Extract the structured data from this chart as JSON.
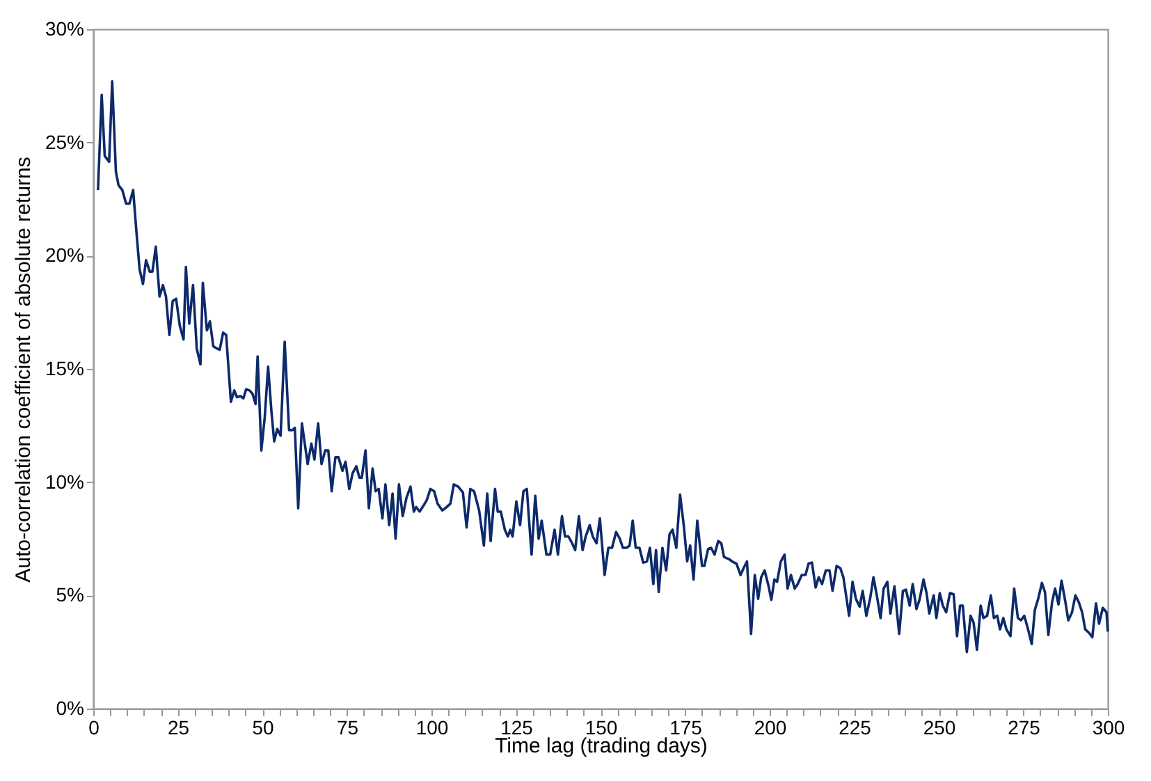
{
  "chart_data": {
    "type": "line",
    "xlabel": "Time lag (trading days)",
    "ylabel": "Auto-correlation coefficient of absolute returns",
    "xlim": [
      0,
      300
    ],
    "xticks": [
      0,
      {
        "value": 5,
        "label": null
      },
      {
        "value": 10,
        "label": null
      },
      {
        "value": 15,
        "label": null
      },
      {
        "value": 20,
        "label": null
      },
      25,
      {
        "value": 30,
        "label": null
      },
      {
        "value": 35,
        "label": null
      },
      {
        "value": 40,
        "label": null
      },
      {
        "value": 45,
        "label": null
      },
      50,
      {
        "value": 55,
        "label": null
      },
      {
        "value": 60,
        "label": null
      },
      {
        "value": 65,
        "label": null
      },
      {
        "value": 70,
        "label": null
      },
      75,
      {
        "value": 80,
        "label": null
      },
      {
        "value": 85,
        "label": null
      },
      {
        "value": 90,
        "label": null
      },
      {
        "value": 95,
        "label": null
      },
      100,
      {
        "value": 105,
        "label": null
      },
      {
        "value": 110,
        "label": null
      },
      {
        "value": 115,
        "label": null
      },
      {
        "value": 120,
        "label": null
      },
      125,
      {
        "value": 130,
        "label": null
      },
      {
        "value": 135,
        "label": null
      },
      {
        "value": 140,
        "label": null
      },
      {
        "value": 145,
        "label": null
      },
      150,
      {
        "value": 155,
        "label": null
      },
      {
        "value": 160,
        "label": null
      },
      {
        "value": 165,
        "label": null
      },
      {
        "value": 170,
        "label": null
      },
      175,
      {
        "value": 180,
        "label": null
      },
      {
        "value": 185,
        "label": null
      },
      {
        "value": 190,
        "label": null
      },
      {
        "value": 195,
        "label": null
      },
      200,
      {
        "value": 205,
        "label": null
      },
      {
        "value": 210,
        "label": null
      },
      {
        "value": 215,
        "label": null
      },
      {
        "value": 220,
        "label": null
      },
      225,
      {
        "value": 230,
        "label": null
      },
      {
        "value": 235,
        "label": null
      },
      {
        "value": 240,
        "label": null
      },
      {
        "value": 245,
        "label": null
      },
      250,
      {
        "value": 255,
        "label": null
      },
      {
        "value": 260,
        "label": null
      },
      {
        "value": 265,
        "label": null
      },
      {
        "value": 270,
        "label": null
      },
      275,
      {
        "value": 280,
        "label": null
      },
      {
        "value": 285,
        "label": null
      },
      {
        "value": 290,
        "label": null
      },
      {
        "value": 295,
        "label": null
      },
      300
    ],
    "ylim": [
      0,
      30
    ],
    "yticks": [
      {
        "value": 0,
        "label": "0%"
      },
      {
        "value": 5,
        "label": "5%"
      },
      {
        "value": 10,
        "label": "10%"
      },
      {
        "value": 15,
        "label": "15%"
      },
      {
        "value": 20,
        "label": "20%"
      },
      {
        "value": 25,
        "label": "25%"
      },
      {
        "value": 30,
        "label": "30%"
      }
    ],
    "grid": false,
    "line_style": "solid",
    "marker": "none",
    "series": [
      {
        "color": "#0d2a6b",
        "x": [
          1.4,
          2.5,
          3.4,
          4.7,
          5.6,
          6.7,
          7.5,
          8.6,
          9.7,
          10.7,
          11.8,
          12.8,
          13.7,
          14.7,
          15.6,
          16.7,
          17.5,
          18.5,
          19.6,
          20.6,
          21.5,
          22.5,
          23.5,
          24.5,
          25.6,
          26.7,
          27.4,
          28.4,
          29.5,
          30.6,
          31.7,
          32.4,
          33.6,
          34.5,
          35.5,
          36.6,
          37.4,
          38.4,
          39.3,
          40.7,
          41.7,
          42.5,
          43.5,
          44.4,
          45.2,
          46.2,
          47.1,
          48.0,
          48.6,
          49.7,
          50.7,
          51.7,
          52.7,
          53.5,
          54.4,
          55.4,
          56.6,
          57.9,
          58.9,
          59.6,
          60.6,
          61.7,
          63.4,
          64.5,
          65.4,
          66.5,
          67.5,
          68.6,
          69.5,
          70.5,
          71.6,
          72.5,
          73.7,
          74.6,
          75.7,
          76.7,
          77.8,
          78.7,
          79.4,
          80.5,
          81.5,
          82.6,
          83.5,
          84.4,
          85.5,
          86.4,
          87.5,
          88.5,
          89.4,
          90.4,
          91.5,
          92.6,
          93.8,
          94.8,
          95.5,
          96.5,
          97.6,
          98.6,
          99.7,
          100.8,
          101.8,
          103.2,
          104.5,
          105.6,
          106.6,
          107.9,
          109.3,
          110.4,
          111.5,
          112.6,
          114.1,
          115.5,
          116.5,
          117.5,
          118.8,
          119.6,
          120.5,
          121.7,
          122.6,
          123.3,
          124,
          125.1,
          126.2,
          127.2,
          128.2,
          129.6,
          130.7,
          131.7,
          132.6,
          134,
          135.1,
          136.4,
          137.4,
          138.6,
          139.5,
          140.5,
          141.6,
          142.5,
          143.6,
          144.7,
          145.6,
          146.8,
          147.7,
          148.8,
          149.8,
          151.2,
          152.3,
          153.4,
          154.6,
          155.7,
          156.6,
          157.7,
          158.6,
          159.5,
          160.4,
          161.5,
          162.6,
          163.7,
          164.6,
          165.6,
          166.4,
          167.2,
          168.3,
          169.4,
          170.4,
          171.3,
          172.4,
          173.5,
          174.6,
          175.6,
          176.5,
          177.5,
          178.6,
          180,
          180.7,
          181.8,
          182.7,
          183.7,
          184.8,
          185.7,
          186.5,
          188,
          188.9,
          190.2,
          191.4,
          192.3,
          193.3,
          194.5,
          195.6,
          196.6,
          197.5,
          198.5,
          199.7,
          200.5,
          201.4,
          202.2,
          203.3,
          204.4,
          205.3,
          206.3,
          207.4,
          208.3,
          209.5,
          210.6,
          211.5,
          212.5,
          213.6,
          214.5,
          215.5,
          216.6,
          217.7,
          218.6,
          219.8,
          220.9,
          221.8,
          223.5,
          224.5,
          225.5,
          226.6,
          227.5,
          228.6,
          229.7,
          230.7,
          231.8,
          232.8,
          233.7,
          234.8,
          235.7,
          236.9,
          238.3,
          239.4,
          240.3,
          241.4,
          242.3,
          243.4,
          244.3,
          245.5,
          246.4,
          247.2,
          248.5,
          249.3,
          250.3,
          251.2,
          252.2,
          253.3,
          254.4,
          255.4,
          256.3,
          257.1,
          258.3,
          259.4,
          260.3,
          261.3,
          262.4,
          263.2,
          264.3,
          265.4,
          266.3,
          267.3,
          268.1,
          269.1,
          270,
          271.2,
          272.3,
          273.4,
          274.3,
          275.3,
          276.4,
          277.5,
          278.4,
          279.4,
          280.5,
          281.4,
          282.4,
          283.5,
          284.4,
          285.4,
          286.3,
          287.4,
          288.3,
          289.4,
          290.4,
          291.4,
          292.4,
          293.3,
          294.4,
          295.4,
          296.5,
          297.4,
          298.5,
          299.6,
          300
        ],
        "values": [
          22.9,
          27.1,
          24.4,
          24.15,
          27.7,
          23.7,
          23.1,
          22.9,
          22.3,
          22.3,
          22.9,
          21.0,
          19.4,
          18.75,
          19.8,
          19.3,
          19.3,
          20.4,
          18.2,
          18.7,
          18.2,
          16.5,
          18.0,
          18.1,
          16.9,
          16.3,
          19.5,
          17.0,
          18.7,
          15.9,
          15.2,
          18.8,
          16.7,
          17.1,
          16.0,
          15.9,
          15.85,
          16.6,
          16.5,
          13.55,
          14.05,
          13.75,
          13.8,
          13.7,
          14.1,
          14.05,
          13.9,
          13.45,
          15.55,
          11.4,
          12.85,
          15.1,
          13.1,
          11.8,
          12.35,
          12.05,
          16.2,
          12.3,
          12.3,
          12.4,
          8.85,
          12.6,
          10.8,
          11.7,
          11.0,
          12.6,
          10.8,
          11.4,
          11.4,
          9.6,
          11.1,
          11.1,
          10.5,
          10.9,
          9.7,
          10.4,
          10.7,
          10.2,
          10.2,
          11.4,
          8.85,
          10.6,
          9.6,
          9.7,
          8.4,
          9.9,
          8.1,
          9.5,
          7.5,
          9.9,
          8.5,
          9.3,
          9.8,
          8.7,
          8.9,
          8.7,
          8.95,
          9.2,
          9.7,
          9.6,
          9.05,
          8.75,
          8.9,
          9.05,
          9.9,
          9.8,
          9.55,
          8.0,
          9.7,
          9.6,
          8.75,
          7.2,
          9.5,
          7.4,
          9.7,
          8.7,
          8.7,
          7.9,
          7.6,
          7.9,
          7.6,
          9.15,
          8.1,
          9.6,
          9.7,
          6.8,
          9.4,
          7.5,
          8.3,
          6.8,
          6.8,
          7.9,
          6.8,
          8.5,
          7.6,
          7.6,
          7.3,
          7.0,
          8.5,
          7.0,
          7.6,
          8.1,
          7.6,
          7.3,
          8.4,
          5.9,
          7.1,
          7.1,
          7.8,
          7.5,
          7.1,
          7.1,
          7.2,
          8.3,
          7.1,
          7.1,
          6.45,
          6.5,
          7.1,
          5.5,
          7.0,
          5.15,
          7.1,
          6.1,
          7.7,
          7.9,
          7.1,
          9.45,
          8.1,
          6.5,
          7.2,
          5.7,
          8.3,
          6.3,
          6.3,
          7.05,
          7.1,
          6.8,
          7.4,
          7.3,
          6.7,
          6.6,
          6.5,
          6.4,
          5.9,
          6.2,
          6.5,
          3.3,
          5.9,
          4.85,
          5.8,
          6.1,
          5.4,
          4.8,
          5.7,
          5.6,
          6.5,
          6.8,
          5.3,
          5.9,
          5.3,
          5.5,
          5.9,
          5.9,
          6.4,
          6.45,
          5.35,
          5.8,
          5.5,
          6.1,
          6.1,
          5.2,
          6.3,
          6.2,
          5.8,
          4.1,
          5.6,
          4.85,
          4.5,
          5.2,
          4.1,
          4.85,
          5.8,
          4.9,
          4.0,
          5.3,
          5.6,
          4.2,
          5.4,
          3.3,
          5.2,
          5.25,
          4.55,
          5.5,
          4.4,
          4.8,
          5.7,
          5.1,
          4.2,
          5.0,
          4.0,
          5.1,
          4.55,
          4.25,
          5.1,
          5.05,
          3.2,
          4.55,
          4.55,
          2.5,
          4.1,
          3.8,
          2.6,
          4.55,
          4.0,
          4.1,
          5.0,
          4.0,
          4.1,
          3.5,
          4.0,
          3.5,
          3.2,
          5.3,
          4.0,
          3.9,
          4.1,
          3.5,
          2.85,
          4.35,
          4.85,
          5.55,
          5.15,
          3.25,
          4.7,
          5.3,
          4.6,
          5.65,
          4.75,
          3.9,
          4.25,
          5.0,
          4.7,
          4.25,
          3.5,
          3.35,
          3.15,
          4.65,
          3.75,
          4.45,
          4.25,
          3.4
        ]
      }
    ]
  }
}
